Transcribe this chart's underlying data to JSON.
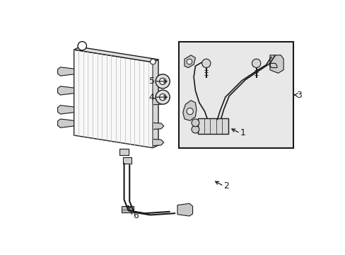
{
  "bg_color": "#ffffff",
  "lc": "#1a1a1a",
  "box_fill": "#e8e8e8",
  "rad_fill": "#f5f5f5",
  "rad_side_fill": "#d8d8d8",
  "rad_lines": "#aaaaaa"
}
